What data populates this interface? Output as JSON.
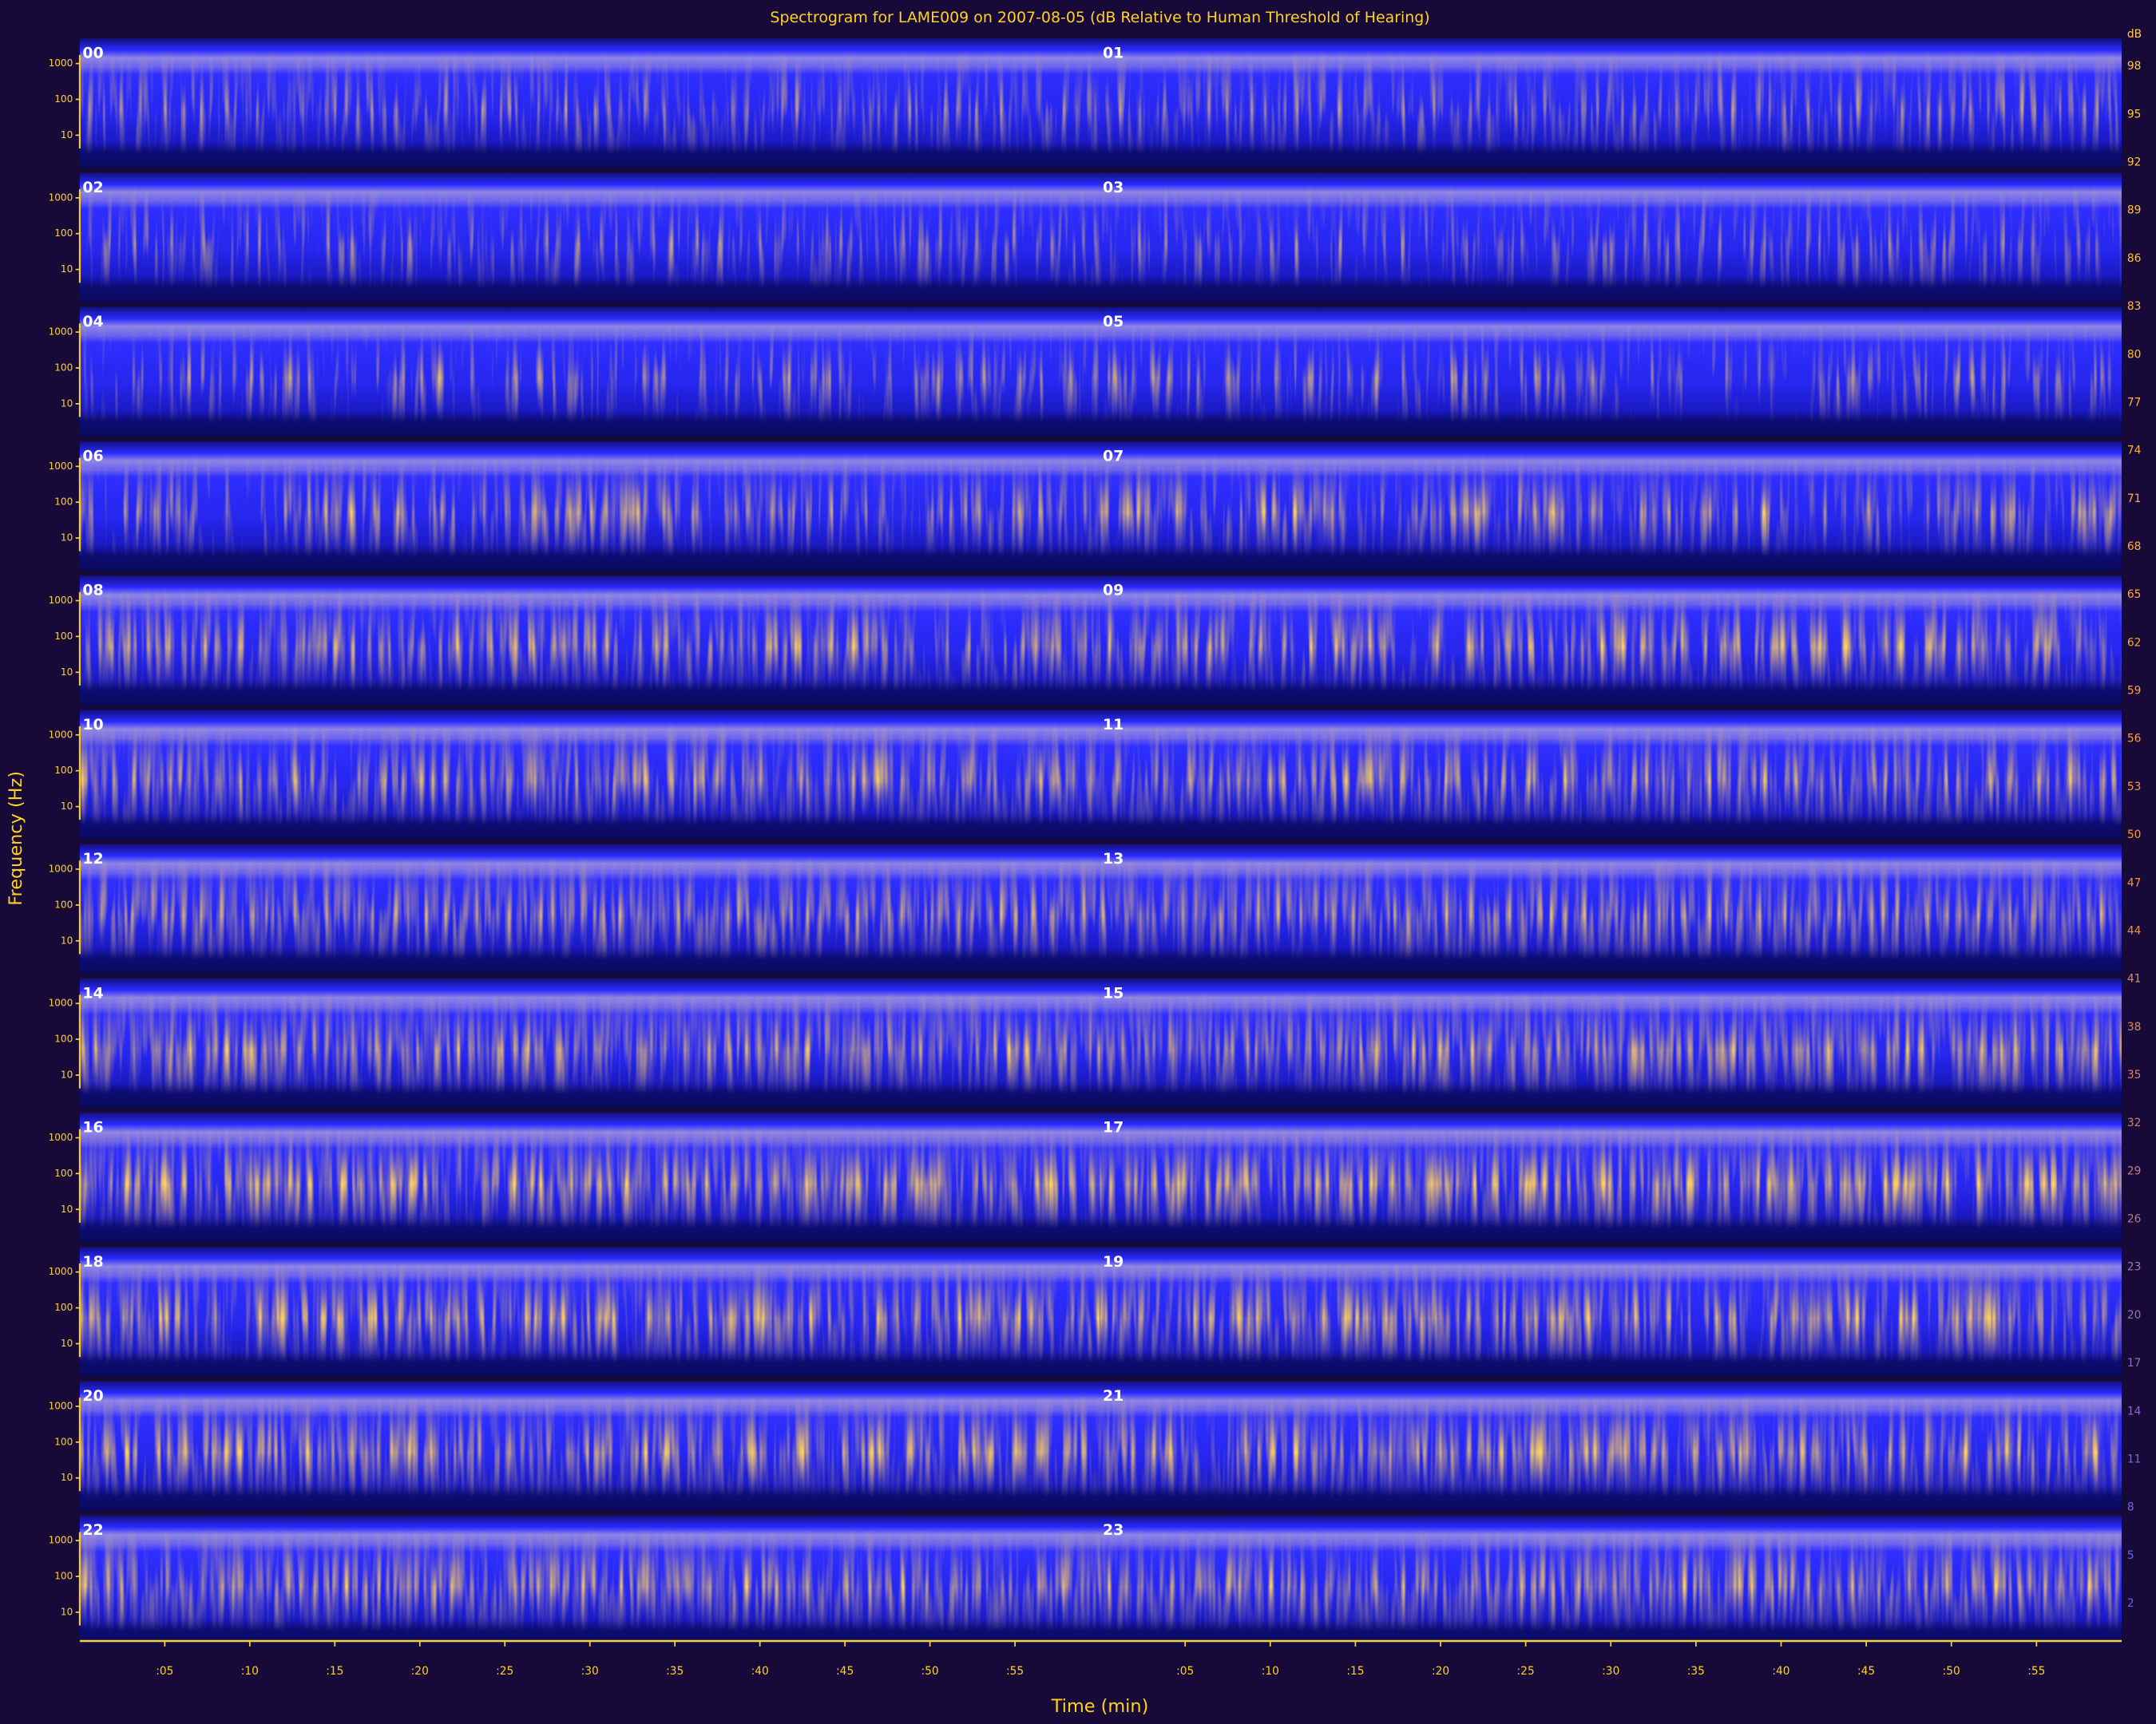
{
  "chart_data": {
    "type": "spectrogram",
    "title": "Spectrogram for LAME009 on 2007-08-05 (dB Relative to Human Threshold of Hearing)",
    "y_label": "Frequency (Hz)",
    "x_label": "Time (min)",
    "hours": [
      "00",
      "01",
      "02",
      "03",
      "04",
      "05",
      "06",
      "07",
      "08",
      "09",
      "10",
      "11",
      "12",
      "13",
      "14",
      "15",
      "16",
      "17",
      "18",
      "19",
      "20",
      "21",
      "22",
      "23"
    ],
    "y_scale": "log",
    "ylim": [
      3,
      5000
    ],
    "yticks": [
      10,
      100,
      1000
    ],
    "xlim": [
      0,
      60
    ],
    "xticks": [
      {
        "value": 5,
        "label": ":05"
      },
      {
        "value": 10,
        "label": ":10"
      },
      {
        "value": 15,
        "label": ":15"
      },
      {
        "value": 20,
        "label": ":20"
      },
      {
        "value": 25,
        "label": ":25"
      },
      {
        "value": 30,
        "label": ":30"
      },
      {
        "value": 35,
        "label": ":35"
      },
      {
        "value": 40,
        "label": ":40"
      },
      {
        "value": 45,
        "label": ":45"
      },
      {
        "value": 50,
        "label": ":50"
      },
      {
        "value": 55,
        "label": ":55"
      }
    ],
    "colorbar": {
      "label": "dB",
      "clim": [
        0,
        100
      ],
      "ticks": [
        98,
        95,
        92,
        89,
        86,
        83,
        80,
        77,
        74,
        71,
        68,
        65,
        62,
        59,
        56,
        53,
        50,
        47,
        44,
        41,
        38,
        35,
        32,
        29,
        26,
        23,
        20,
        17,
        14,
        11,
        8,
        5,
        2
      ]
    }
  }
}
